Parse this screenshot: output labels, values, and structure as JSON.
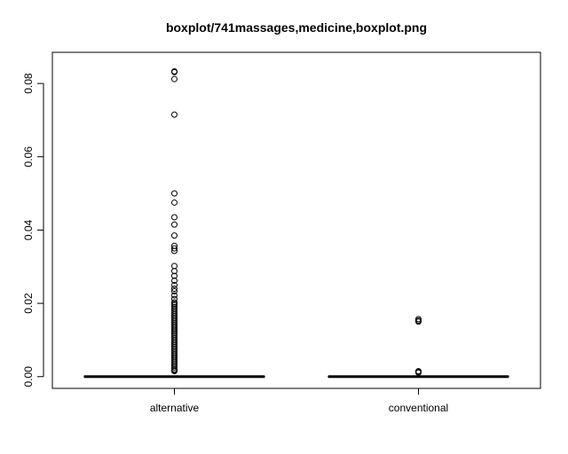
{
  "chart_data": {
    "type": "boxplot",
    "title": "boxplot/741massages,medicine,boxplot.png",
    "xlabel": "",
    "ylabel": "",
    "ylim": [
      -0.0032,
      0.0885
    ],
    "yticks": [
      0.0,
      0.02,
      0.04,
      0.06,
      0.08
    ],
    "ytick_labels": [
      "0.00",
      "0.02",
      "0.04",
      "0.06",
      "0.08"
    ],
    "grid": false,
    "categories": [
      "alternative",
      "conventional"
    ],
    "boxes": [
      {
        "name": "alternative",
        "min": 0.0,
        "q1": 0.0,
        "median": 0.0,
        "q3": 0.0,
        "max": 0.0,
        "outliers": [
          0.0833,
          0.0831,
          0.0812,
          0.0715,
          0.05,
          0.0475,
          0.0435,
          0.0415,
          0.0385,
          0.0357,
          0.035,
          0.0343,
          0.0302,
          0.0288,
          0.0275,
          0.0262,
          0.025,
          0.024,
          0.0233,
          0.0222,
          0.0212,
          0.0203,
          0.0199,
          0.0195,
          0.019,
          0.0185,
          0.018,
          0.0175,
          0.017,
          0.0165,
          0.016,
          0.0155,
          0.015,
          0.0145,
          0.014,
          0.0135,
          0.013,
          0.0125,
          0.012,
          0.0115,
          0.011,
          0.0105,
          0.01,
          0.0095,
          0.009,
          0.0085,
          0.008,
          0.0075,
          0.007,
          0.0065,
          0.006,
          0.0055,
          0.005,
          0.0045,
          0.004,
          0.0035,
          0.003,
          0.0025,
          0.002,
          0.0017,
          0.0015
        ]
      },
      {
        "name": "conventional",
        "min": 0.0,
        "q1": 0.0,
        "median": 0.0,
        "q3": 0.0,
        "max": 0.0,
        "outliers": [
          0.0157,
          0.0153,
          0.015,
          0.0015,
          0.0013,
          0.0011
        ]
      }
    ]
  }
}
